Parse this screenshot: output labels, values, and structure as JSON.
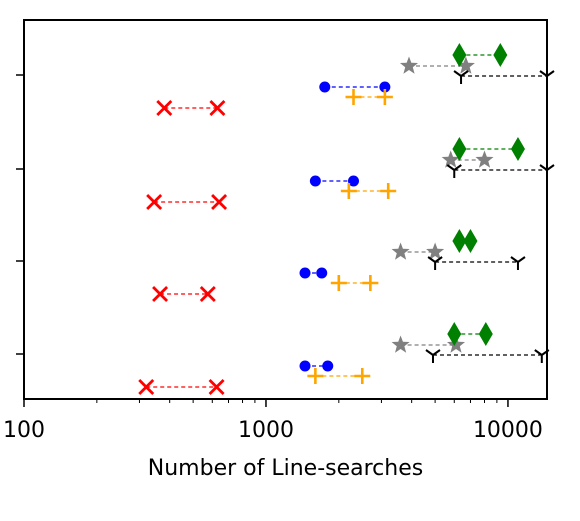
{
  "chart_data": {
    "type": "scatter",
    "title": "",
    "xlabel": "Number of Line-searches",
    "ylabel": "",
    "x_scale": "log",
    "xlim": [
      100,
      14500
    ],
    "x_ticks": [
      {
        "value": 100,
        "label": "100"
      },
      {
        "value": 1000,
        "label": "1000"
      },
      {
        "value": 10000,
        "label": "10000"
      }
    ],
    "groups": 4,
    "grid": false,
    "legend": "none",
    "series": [
      {
        "marker": "x",
        "color": "#ff0000",
        "ranges": [
          [
            380,
            630
          ],
          [
            345,
            640
          ],
          [
            365,
            575
          ],
          [
            320,
            625
          ]
        ]
      },
      {
        "marker": "circle",
        "color": "#0000ff",
        "ranges": [
          [
            1750,
            3100
          ],
          [
            1600,
            2300
          ],
          [
            1450,
            1700
          ],
          [
            1450,
            1800
          ]
        ]
      },
      {
        "marker": "plus",
        "color": "#ffa500",
        "ranges": [
          [
            2300,
            3100
          ],
          [
            2200,
            3200
          ],
          [
            2000,
            2700
          ],
          [
            1600,
            2500
          ]
        ]
      },
      {
        "marker": "star",
        "color": "#808080",
        "ranges": [
          [
            3900,
            6700
          ],
          [
            5800,
            8000
          ],
          [
            3600,
            5000
          ],
          [
            3600,
            6100
          ]
        ]
      },
      {
        "marker": "diamond",
        "color": "#008000",
        "ranges": [
          [
            6300,
            9300
          ],
          [
            6300,
            11000
          ],
          [
            6300,
            7000
          ],
          [
            6000,
            8100
          ]
        ]
      },
      {
        "marker": "tri_down",
        "color": "#000000",
        "ranges": [
          [
            6400,
            14500
          ],
          [
            6000,
            14500
          ],
          [
            5000,
            11000
          ],
          [
            4900,
            13800
          ]
        ]
      }
    ]
  }
}
